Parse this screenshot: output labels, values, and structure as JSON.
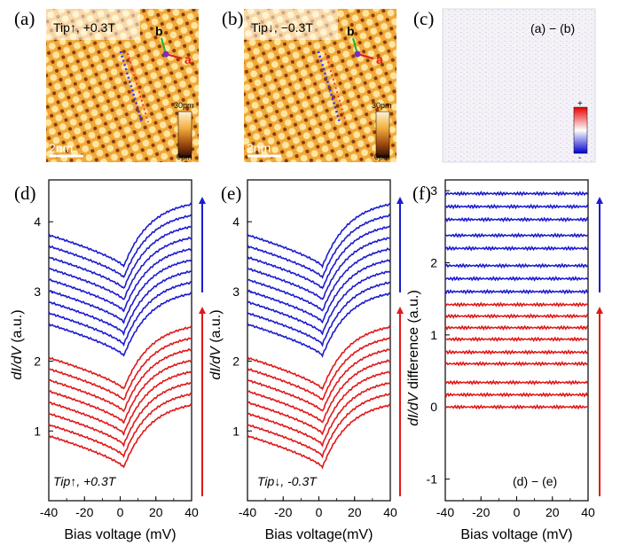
{
  "panel_labels": [
    "(a)",
    "(b)",
    "(c)",
    "(d)",
    "(e)",
    "(f)"
  ],
  "colors": {
    "blue": "#1c1ccf",
    "red": "#e01818",
    "afm_light": "#f2b33a",
    "afm_dark": "#6a2a08"
  },
  "image_panels": {
    "a": {
      "tag": "Tip↑, +0.3T",
      "scalebar": "2nm",
      "cbar_top": "30pm",
      "cbar_bottom": "0pm",
      "axis_a": "a",
      "axis_b": "b"
    },
    "b": {
      "tag": "Tip↓, −0.3T",
      "scalebar": "2nm",
      "cbar_top": "30pm",
      "cbar_bottom": "0pm",
      "axis_a": "a",
      "axis_b": "b"
    },
    "c": {
      "tag": "(a) − (b)",
      "cbar_plus": "+",
      "cbar_minus": "-"
    }
  },
  "chart_data": [
    {
      "panel": "d",
      "type": "line",
      "xlabel": "Bias voltage (mV)",
      "ylabel_italic": "dI/dV",
      "ylabel_rest": " (a.u.)",
      "xlim": [
        -40,
        40
      ],
      "ylim": [
        0,
        4.6
      ],
      "xticks": [
        -40,
        -20,
        0,
        20,
        40
      ],
      "yticks": [
        1,
        2,
        3,
        4
      ],
      "annotation": "Tip↑, +0.3T",
      "series": [
        {
          "name": "red-1",
          "color": "red",
          "offset": 0.0
        },
        {
          "name": "red-2",
          "color": "red",
          "offset": 0.16
        },
        {
          "name": "red-3",
          "color": "red",
          "offset": 0.32
        },
        {
          "name": "red-4",
          "color": "red",
          "offset": 0.48
        },
        {
          "name": "red-5",
          "color": "red",
          "offset": 0.64
        },
        {
          "name": "red-6",
          "color": "red",
          "offset": 0.8
        },
        {
          "name": "red-7",
          "color": "red",
          "offset": 0.96
        },
        {
          "name": "red-8",
          "color": "red",
          "offset": 1.12
        },
        {
          "name": "blue-1",
          "color": "blue",
          "offset": 1.6
        },
        {
          "name": "blue-2",
          "color": "blue",
          "offset": 1.76
        },
        {
          "name": "blue-3",
          "color": "blue",
          "offset": 1.92
        },
        {
          "name": "blue-4",
          "color": "blue",
          "offset": 2.08
        },
        {
          "name": "blue-5",
          "color": "blue",
          "offset": 2.24
        },
        {
          "name": "blue-6",
          "color": "blue",
          "offset": 2.4
        },
        {
          "name": "blue-7",
          "color": "blue",
          "offset": 2.56
        },
        {
          "name": "blue-8",
          "color": "blue",
          "offset": 2.72
        },
        {
          "name": "blue-9",
          "color": "blue",
          "offset": 2.88
        }
      ],
      "base_curve": {
        "min_value": 0.48,
        "min_at_mV": 2,
        "left_end": 0.93,
        "right_end": 1.37
      }
    },
    {
      "panel": "e",
      "type": "line",
      "xlabel": "Bias voltage(mV)",
      "ylabel_italic": "dI/dV",
      "ylabel_rest": " (a.u.)",
      "xlim": [
        -40,
        40
      ],
      "ylim": [
        0,
        4.6
      ],
      "xticks": [
        -40,
        -20,
        0,
        20,
        40
      ],
      "yticks": [
        1,
        2,
        3,
        4
      ],
      "annotation": "Tip↓, -0.3T",
      "series": [
        {
          "name": "red-1",
          "color": "red",
          "offset": 0.0
        },
        {
          "name": "red-2",
          "color": "red",
          "offset": 0.16
        },
        {
          "name": "red-3",
          "color": "red",
          "offset": 0.32
        },
        {
          "name": "red-4",
          "color": "red",
          "offset": 0.48
        },
        {
          "name": "red-5",
          "color": "red",
          "offset": 0.64
        },
        {
          "name": "red-6",
          "color": "red",
          "offset": 0.8
        },
        {
          "name": "red-7",
          "color": "red",
          "offset": 0.96
        },
        {
          "name": "red-8",
          "color": "red",
          "offset": 1.12
        },
        {
          "name": "blue-1",
          "color": "blue",
          "offset": 1.6
        },
        {
          "name": "blue-2",
          "color": "blue",
          "offset": 1.76
        },
        {
          "name": "blue-3",
          "color": "blue",
          "offset": 1.92
        },
        {
          "name": "blue-4",
          "color": "blue",
          "offset": 2.08
        },
        {
          "name": "blue-5",
          "color": "blue",
          "offset": 2.24
        },
        {
          "name": "blue-6",
          "color": "blue",
          "offset": 2.4
        },
        {
          "name": "blue-7",
          "color": "blue",
          "offset": 2.56
        },
        {
          "name": "blue-8",
          "color": "blue",
          "offset": 2.72
        },
        {
          "name": "blue-9",
          "color": "blue",
          "offset": 2.88
        }
      ],
      "base_curve": {
        "min_value": 0.48,
        "min_at_mV": 2,
        "left_end": 0.93,
        "right_end": 1.37
      }
    },
    {
      "panel": "f",
      "type": "line",
      "xlabel": "Bias voltage (mV)",
      "ylabel_italic": "dI/dV",
      "ylabel_rest": " difference (a.u.)",
      "xlim": [
        -40,
        40
      ],
      "ylim": [
        -1.3,
        3.15
      ],
      "xticks": [
        -40,
        -20,
        0,
        20,
        40
      ],
      "yticks": [
        -1,
        0,
        1,
        2,
        3
      ],
      "annotation": "(d) − (e)",
      "series": [
        {
          "name": "red-1",
          "color": "red",
          "value": 0.0
        },
        {
          "name": "red-2",
          "color": "red",
          "value": 0.17
        },
        {
          "name": "red-3",
          "color": "red",
          "value": 0.34
        },
        {
          "name": "red-4",
          "color": "red",
          "value": 0.6
        },
        {
          "name": "red-5",
          "color": "red",
          "value": 0.76
        },
        {
          "name": "red-6",
          "color": "red",
          "value": 0.94
        },
        {
          "name": "red-7",
          "color": "red",
          "value": 1.1
        },
        {
          "name": "red-8",
          "color": "red",
          "value": 1.26
        },
        {
          "name": "red-9",
          "color": "red",
          "value": 1.42
        },
        {
          "name": "blue-1",
          "color": "blue",
          "value": 1.6
        },
        {
          "name": "blue-2",
          "color": "blue",
          "value": 1.78
        },
        {
          "name": "blue-3",
          "color": "blue",
          "value": 1.96
        },
        {
          "name": "blue-4",
          "color": "blue",
          "value": 2.2
        },
        {
          "name": "blue-5",
          "color": "blue",
          "value": 2.38
        },
        {
          "name": "blue-6",
          "color": "blue",
          "value": 2.6
        },
        {
          "name": "blue-7",
          "color": "blue",
          "value": 2.78
        },
        {
          "name": "blue-8",
          "color": "blue",
          "value": 2.96
        }
      ]
    }
  ]
}
